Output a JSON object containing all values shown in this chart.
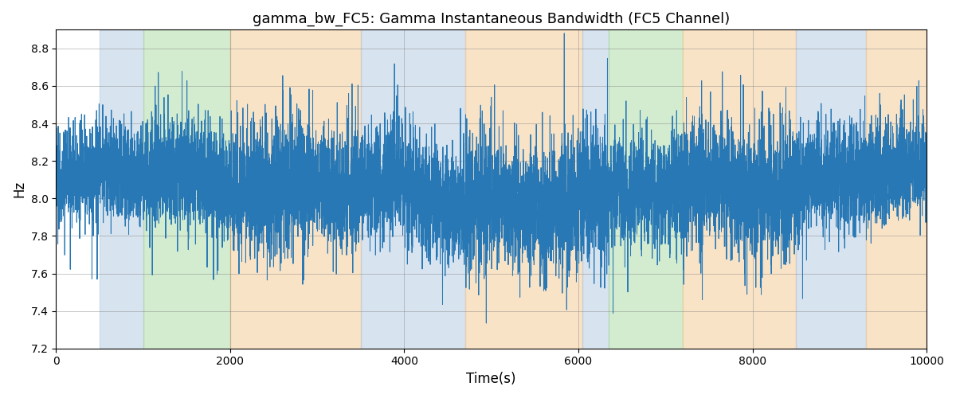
{
  "title": "gamma_bw_FC5: Gamma Instantaneous Bandwidth (FC5 Channel)",
  "xlabel": "Time(s)",
  "ylabel": "Hz",
  "xlim": [
    0,
    10000
  ],
  "ylim": [
    7.2,
    8.9
  ],
  "line_color": "#2878b5",
  "line_width": 0.7,
  "background_regions": [
    {
      "xmin": 500,
      "xmax": 1000,
      "color": "#b0c8e0",
      "alpha": 0.5
    },
    {
      "xmin": 1000,
      "xmax": 2000,
      "color": "#a8d8a0",
      "alpha": 0.5
    },
    {
      "xmin": 2000,
      "xmax": 3500,
      "color": "#f5c990",
      "alpha": 0.5
    },
    {
      "xmin": 3500,
      "xmax": 4700,
      "color": "#b0c8e0",
      "alpha": 0.5
    },
    {
      "xmin": 4700,
      "xmax": 6050,
      "color": "#f5c990",
      "alpha": 0.5
    },
    {
      "xmin": 6050,
      "xmax": 6350,
      "color": "#b0c8e0",
      "alpha": 0.5
    },
    {
      "xmin": 6350,
      "xmax": 7200,
      "color": "#a8d8a0",
      "alpha": 0.5
    },
    {
      "xmin": 7200,
      "xmax": 8500,
      "color": "#f5c990",
      "alpha": 0.5
    },
    {
      "xmin": 8500,
      "xmax": 9300,
      "color": "#b0c8e0",
      "alpha": 0.5
    },
    {
      "xmin": 9300,
      "xmax": 10100,
      "color": "#f5c990",
      "alpha": 0.5
    }
  ],
  "seed": 0,
  "n_points": 10000,
  "base_mean": 8.05,
  "title_fontsize": 13,
  "yticks": [
    7.2,
    7.4,
    7.6,
    7.8,
    8.0,
    8.2,
    8.4,
    8.6,
    8.8
  ],
  "xticks": [
    0,
    2000,
    4000,
    6000,
    8000,
    10000
  ],
  "segment_params": [
    {
      "start": 0,
      "end": 500,
      "std": 0.13,
      "extra_spike_prob": 0.003
    },
    {
      "start": 500,
      "end": 1000,
      "std": 0.13,
      "extra_spike_prob": 0.003
    },
    {
      "start": 1000,
      "end": 2000,
      "std": 0.14,
      "extra_spike_prob": 0.005
    },
    {
      "start": 2000,
      "end": 3500,
      "std": 0.17,
      "extra_spike_prob": 0.006
    },
    {
      "start": 3500,
      "end": 4700,
      "std": 0.15,
      "extra_spike_prob": 0.005
    },
    {
      "start": 4700,
      "end": 6050,
      "std": 0.18,
      "extra_spike_prob": 0.007
    },
    {
      "start": 6050,
      "end": 6350,
      "std": 0.18,
      "extra_spike_prob": 0.007
    },
    {
      "start": 6350,
      "end": 7200,
      "std": 0.15,
      "extra_spike_prob": 0.005
    },
    {
      "start": 7200,
      "end": 8500,
      "std": 0.17,
      "extra_spike_prob": 0.008
    },
    {
      "start": 8500,
      "end": 9300,
      "std": 0.14,
      "extra_spike_prob": 0.005
    },
    {
      "start": 9300,
      "end": 10000,
      "std": 0.14,
      "extra_spike_prob": 0.005
    }
  ]
}
